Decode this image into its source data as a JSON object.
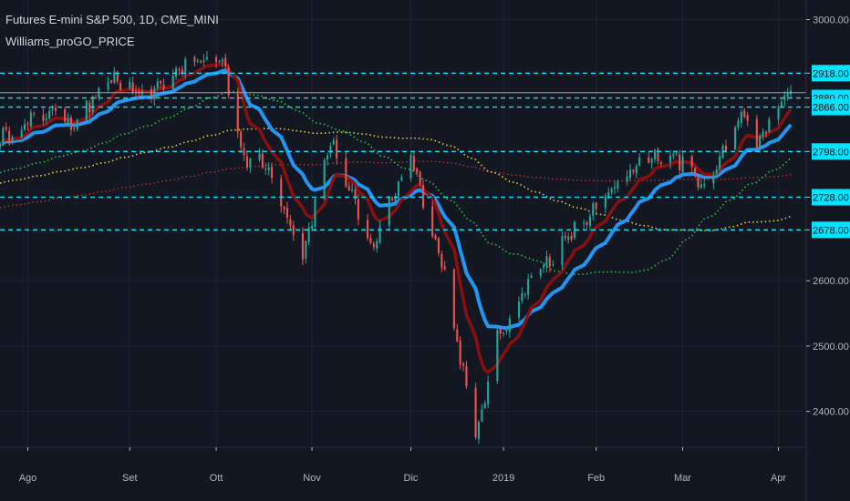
{
  "header": {
    "symbol_line": "Futures E-mini S&P 500, 1D, CME_MINI",
    "indicator_line": "Williams_proGO_PRICE"
  },
  "colors": {
    "background": "#131722",
    "bull": "#26a69a",
    "bear": "#ef5350",
    "fast_ma": "#8b0f0f",
    "slow_ma": "#2196f3",
    "level": "#00e5ff",
    "ma_green": "#31c244",
    "ma_yellow": "#e6d23a",
    "ma_red": "#c0342d"
  },
  "chart_data": {
    "type": "candlestick",
    "title": "Futures E-mini S&P 500, 1D, CME_MINI",
    "indicator": "Williams_proGO_PRICE",
    "y_axis": {
      "ticks": [
        3000,
        2918,
        2880,
        2866,
        2798,
        2728,
        2678,
        2600,
        2500,
        2400
      ],
      "tick_labels": [
        "3000.00",
        "2918.00",
        "2880.00",
        "2866.00",
        "2798.00",
        "2728.00",
        "2678.00",
        "2600.00",
        "2500.00",
        "2400.00"
      ],
      "highlighted_labels": [
        "2918.00",
        "2880.00",
        "2866.00",
        "2798.00",
        "2728.00",
        "2678.00"
      ],
      "range": [
        2345,
        3030
      ]
    },
    "x_axis": {
      "tick_labels": [
        "Ago",
        "Set",
        "Ott",
        "Nov",
        "Dic",
        "2019",
        "Feb",
        "Mar",
        "Apr"
      ],
      "range": [
        "2018-07-23",
        "2019-04-10"
      ]
    },
    "horizontal_levels": [
      2918,
      2880,
      2866,
      2798,
      2728,
      2678
    ],
    "price_line": 2888,
    "anchors": [
      [
        "2018-07-23",
        2818
      ],
      [
        "2018-08-08",
        2859
      ],
      [
        "2018-08-16",
        2843
      ],
      [
        "2018-08-29",
        2912
      ],
      [
        "2018-09-07",
        2876
      ],
      [
        "2018-09-21",
        2932
      ],
      [
        "2018-10-03",
        2940
      ],
      [
        "2018-10-10",
        2788
      ],
      [
        "2018-10-18",
        2773
      ],
      [
        "2018-10-29",
        2641
      ],
      [
        "2018-11-07",
        2816
      ],
      [
        "2018-11-20",
        2648
      ],
      [
        "2018-12-03",
        2795
      ],
      [
        "2018-12-14",
        2609
      ],
      [
        "2018-12-24",
        2357
      ],
      [
        "2018-12-31",
        2510
      ],
      [
        "2019-01-10",
        2598
      ],
      [
        "2019-01-31",
        2706
      ],
      [
        "2019-02-15",
        2779
      ],
      [
        "2019-02-25",
        2798
      ],
      [
        "2019-03-08",
        2748
      ],
      [
        "2019-03-21",
        2860
      ],
      [
        "2019-03-25",
        2807
      ],
      [
        "2019-04-05",
        2896
      ]
    ],
    "series": [
      {
        "type": "ema",
        "period": 10
      },
      {
        "type": "ema",
        "period": 20
      },
      {
        "type": "sma",
        "period": 50
      },
      {
        "type": "sma",
        "period": 100
      },
      {
        "type": "sma",
        "period": 200
      }
    ],
    "grid": true,
    "legend": "none"
  }
}
